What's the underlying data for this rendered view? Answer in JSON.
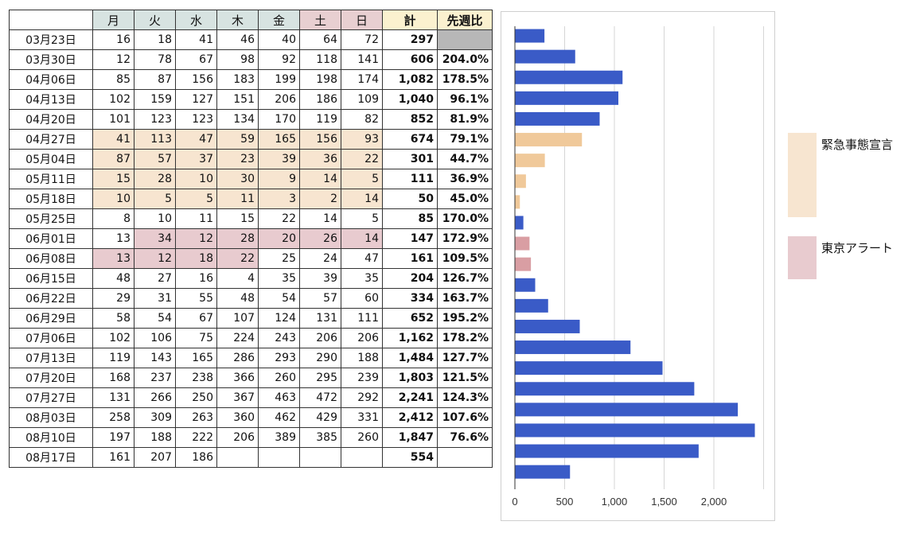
{
  "table": {
    "headers": {
      "blank": "",
      "days": [
        "月",
        "火",
        "水",
        "木",
        "金",
        "土",
        "日"
      ],
      "total": "計",
      "ratio": "先週比"
    },
    "rows": [
      {
        "week": "03月23日",
        "values": [
          "16",
          "18",
          "41",
          "46",
          "40",
          "64",
          "72"
        ],
        "total": "297",
        "ratio": "",
        "ratio_empty": true,
        "hl": [
          0,
          0,
          0,
          0,
          0,
          0,
          0
        ]
      },
      {
        "week": "03月30日",
        "values": [
          "12",
          "78",
          "67",
          "98",
          "92",
          "118",
          "141"
        ],
        "total": "606",
        "ratio": "204.0%",
        "hl": [
          0,
          0,
          0,
          0,
          0,
          0,
          0
        ]
      },
      {
        "week": "04月06日",
        "values": [
          "85",
          "87",
          "156",
          "183",
          "199",
          "198",
          "174"
        ],
        "total": "1,082",
        "ratio": "178.5%",
        "hl": [
          0,
          0,
          0,
          0,
          0,
          0,
          0
        ]
      },
      {
        "week": "04月13日",
        "values": [
          "102",
          "159",
          "127",
          "151",
          "206",
          "186",
          "109"
        ],
        "total": "1,040",
        "ratio": "96.1%",
        "hl": [
          0,
          0,
          0,
          0,
          0,
          0,
          0
        ]
      },
      {
        "week": "04月20日",
        "values": [
          "101",
          "123",
          "123",
          "134",
          "170",
          "119",
          "82"
        ],
        "total": "852",
        "ratio": "81.9%",
        "hl": [
          0,
          0,
          0,
          0,
          0,
          0,
          0
        ]
      },
      {
        "week": "04月27日",
        "values": [
          "41",
          "113",
          "47",
          "59",
          "165",
          "156",
          "93"
        ],
        "total": "674",
        "ratio": "79.1%",
        "hl": [
          "e",
          "e",
          "e",
          "e",
          "e",
          "e",
          "e"
        ]
      },
      {
        "week": "05月04日",
        "values": [
          "87",
          "57",
          "37",
          "23",
          "39",
          "36",
          "22"
        ],
        "total": "301",
        "ratio": "44.7%",
        "hl": [
          "e",
          "e",
          "e",
          "e",
          "e",
          "e",
          "e"
        ]
      },
      {
        "week": "05月11日",
        "values": [
          "15",
          "28",
          "10",
          "30",
          "9",
          "14",
          "5"
        ],
        "total": "111",
        "ratio": "36.9%",
        "hl": [
          "e",
          "e",
          "e",
          "e",
          "e",
          "e",
          "e"
        ]
      },
      {
        "week": "05月18日",
        "values": [
          "10",
          "5",
          "5",
          "11",
          "3",
          "2",
          "14"
        ],
        "total": "50",
        "ratio": "45.0%",
        "hl": [
          "e",
          "e",
          "e",
          "e",
          "e",
          "e",
          "e"
        ]
      },
      {
        "week": "05月25日",
        "values": [
          "8",
          "10",
          "11",
          "15",
          "22",
          "14",
          "5"
        ],
        "total": "85",
        "ratio": "170.0%",
        "hl": [
          0,
          0,
          0,
          0,
          0,
          0,
          0
        ]
      },
      {
        "week": "06月01日",
        "values": [
          "13",
          "34",
          "12",
          "28",
          "20",
          "26",
          "14"
        ],
        "total": "147",
        "ratio": "172.9%",
        "hl": [
          0,
          "a",
          "a",
          "a",
          "a",
          "a",
          "a"
        ]
      },
      {
        "week": "06月08日",
        "values": [
          "13",
          "12",
          "18",
          "22",
          "25",
          "24",
          "47"
        ],
        "total": "161",
        "ratio": "109.5%",
        "hl": [
          "a",
          "a",
          "a",
          "a",
          0,
          0,
          0
        ]
      },
      {
        "week": "06月15日",
        "values": [
          "48",
          "27",
          "16",
          "4",
          "35",
          "39",
          "35"
        ],
        "total": "204",
        "ratio": "126.7%",
        "hl": [
          0,
          0,
          0,
          0,
          0,
          0,
          0
        ]
      },
      {
        "week": "06月22日",
        "values": [
          "29",
          "31",
          "55",
          "48",
          "54",
          "57",
          "60"
        ],
        "total": "334",
        "ratio": "163.7%",
        "hl": [
          0,
          0,
          0,
          0,
          0,
          0,
          0
        ]
      },
      {
        "week": "06月29日",
        "values": [
          "58",
          "54",
          "67",
          "107",
          "124",
          "131",
          "111"
        ],
        "total": "652",
        "ratio": "195.2%",
        "hl": [
          0,
          0,
          0,
          0,
          0,
          0,
          0
        ]
      },
      {
        "week": "07月06日",
        "values": [
          "102",
          "106",
          "75",
          "224",
          "243",
          "206",
          "206"
        ],
        "total": "1,162",
        "ratio": "178.2%",
        "hl": [
          0,
          0,
          0,
          0,
          0,
          0,
          0
        ]
      },
      {
        "week": "07月13日",
        "values": [
          "119",
          "143",
          "165",
          "286",
          "293",
          "290",
          "188"
        ],
        "total": "1,484",
        "ratio": "127.7%",
        "hl": [
          0,
          0,
          0,
          0,
          0,
          0,
          0
        ]
      },
      {
        "week": "07月20日",
        "values": [
          "168",
          "237",
          "238",
          "366",
          "260",
          "295",
          "239"
        ],
        "total": "1,803",
        "ratio": "121.5%",
        "hl": [
          0,
          0,
          0,
          0,
          0,
          0,
          0
        ]
      },
      {
        "week": "07月27日",
        "values": [
          "131",
          "266",
          "250",
          "367",
          "463",
          "472",
          "292"
        ],
        "total": "2,241",
        "ratio": "124.3%",
        "hl": [
          0,
          0,
          0,
          0,
          0,
          0,
          0
        ]
      },
      {
        "week": "08月03日",
        "values": [
          "258",
          "309",
          "263",
          "360",
          "462",
          "429",
          "331"
        ],
        "total": "2,412",
        "ratio": "107.6%",
        "hl": [
          0,
          0,
          0,
          0,
          0,
          0,
          0
        ]
      },
      {
        "week": "08月10日",
        "values": [
          "197",
          "188",
          "222",
          "206",
          "389",
          "385",
          "260"
        ],
        "total": "1,847",
        "ratio": "76.6%",
        "hl": [
          0,
          0,
          0,
          0,
          0,
          0,
          0
        ]
      },
      {
        "week": "08月17日",
        "values": [
          "161",
          "207",
          "186",
          "",
          "",
          "",
          ""
        ],
        "total": "554",
        "ratio": "",
        "hl": [
          0,
          0,
          0,
          0,
          0,
          0,
          0
        ]
      }
    ]
  },
  "chart_data": {
    "type": "bar",
    "orientation": "horizontal",
    "categories": [
      "03月23日",
      "03月30日",
      "04月06日",
      "04月13日",
      "04月20日",
      "04月27日",
      "05月04日",
      "05月11日",
      "05月18日",
      "05月25日",
      "06月01日",
      "06月08日",
      "06月15日",
      "06月22日",
      "06月29日",
      "07月06日",
      "07月13日",
      "07月20日",
      "07月27日",
      "08月03日",
      "08月10日",
      "08月17日"
    ],
    "values": [
      297,
      606,
      1082,
      1040,
      852,
      674,
      301,
      111,
      50,
      85,
      147,
      161,
      204,
      334,
      652,
      1162,
      1484,
      1803,
      2241,
      2412,
      1847,
      554
    ],
    "bar_class": [
      "n",
      "n",
      "n",
      "n",
      "n",
      "e",
      "e",
      "e",
      "e",
      "n",
      "a",
      "a",
      "n",
      "n",
      "n",
      "n",
      "n",
      "n",
      "n",
      "n",
      "n",
      "n"
    ],
    "xlim": [
      0,
      2500
    ],
    "xticks": [
      0,
      500,
      1000,
      1500,
      2000
    ],
    "xtick_labels": [
      "0",
      "500",
      "1,000",
      "1,500",
      "2,000"
    ],
    "grid": true,
    "legend_position": "right",
    "colors": {
      "n": "#3a5bc7",
      "e": "#f0c99a",
      "a": "#d99ea3"
    }
  },
  "legend": {
    "items": [
      {
        "label": "緊急事態宣言",
        "color": "#f7e5d0"
      },
      {
        "label": "東京アラート",
        "color": "#e8cbcf"
      }
    ]
  }
}
